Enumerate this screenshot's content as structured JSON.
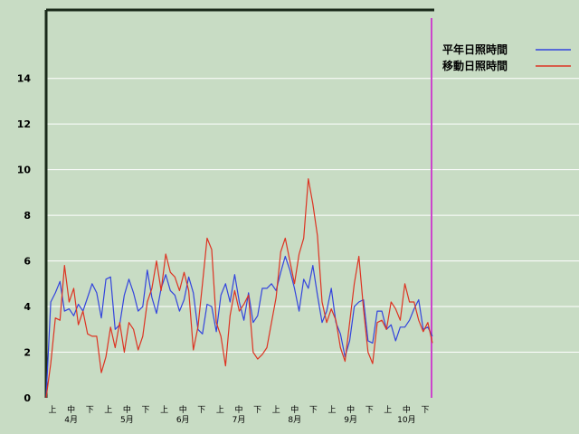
{
  "chart_data": {
    "type": "line",
    "title": "",
    "xlabel": "",
    "ylabel": "",
    "ylim": [
      0,
      17
    ],
    "y_ticks": [
      "0",
      "2",
      "4",
      "6",
      "8",
      "10",
      "12",
      "14"
    ],
    "x_period_labels": [
      "上",
      "中",
      "下",
      "上",
      "中",
      "下",
      "上",
      "中",
      "下",
      "上",
      "中",
      "下",
      "上",
      "中",
      "下",
      "上",
      "中",
      "下",
      "上",
      "中",
      "下"
    ],
    "x_month_labels": [
      "4月",
      "5月",
      "6月",
      "7月",
      "8月",
      "9月",
      "10月"
    ],
    "grid": true,
    "legend_position": "top-right",
    "series": [
      {
        "name": "平年日照時間",
        "color": "#3344dd",
        "values": [
          0.0,
          4.2,
          4.6,
          5.1,
          3.8,
          3.9,
          3.6,
          4.1,
          3.8,
          4.4,
          5.0,
          4.6,
          3.5,
          5.2,
          5.3,
          3.0,
          3.2,
          4.5,
          5.2,
          4.6,
          3.8,
          4.0,
          5.6,
          4.4,
          3.7,
          4.8,
          5.4,
          4.7,
          4.5,
          3.8,
          4.3,
          5.3,
          4.6,
          3.0,
          2.8,
          4.1,
          4.0,
          2.9,
          4.5,
          5.0,
          4.2,
          5.4,
          4.2,
          3.4,
          4.6,
          3.3,
          3.6,
          4.8,
          4.8,
          5.0,
          4.7,
          5.5,
          6.2,
          5.6,
          4.8,
          3.8,
          5.2,
          4.8,
          5.8,
          4.5,
          3.3,
          3.8,
          4.8,
          3.3,
          2.8,
          1.8,
          2.5,
          4.0,
          4.2,
          4.3,
          2.5,
          2.4,
          3.8,
          3.8,
          3.0,
          3.2,
          2.5,
          3.1,
          3.1,
          3.4,
          3.9,
          4.3,
          3.0,
          3.1,
          2.7
        ],
        "color_hex": "#3344dd"
      },
      {
        "name": "移動日照時間",
        "color": "#dd3322",
        "values": [
          0.0,
          1.5,
          3.5,
          3.4,
          5.8,
          4.2,
          4.8,
          3.2,
          3.8,
          2.8,
          2.7,
          2.7,
          1.1,
          1.8,
          3.1,
          2.2,
          3.3,
          2.0,
          3.3,
          3.0,
          2.1,
          2.7,
          4.2,
          4.8,
          6.0,
          4.7,
          6.3,
          5.5,
          5.3,
          4.7,
          5.5,
          4.7,
          2.1,
          3.1,
          5.0,
          7.0,
          6.5,
          3.3,
          2.7,
          1.4,
          3.6,
          4.7,
          3.8,
          4.1,
          4.5,
          2.0,
          1.7,
          1.9,
          2.2,
          3.3,
          4.4,
          6.4,
          7.0,
          6.0,
          5.0,
          6.3,
          7.0,
          9.6,
          8.5,
          7.1,
          4.2,
          3.3,
          3.9,
          3.4,
          2.2,
          1.6,
          3.3,
          5.0,
          6.2,
          3.9,
          2.0,
          1.5,
          3.3,
          3.4,
          3.0,
          4.2,
          3.9,
          3.4,
          5.0,
          4.2,
          4.2,
          3.4,
          2.9,
          3.3,
          2.4
        ],
        "color_hex": "#dd3322"
      }
    ],
    "series_colors": {
      "normal": "#3344dd",
      "moving": "#dd3322",
      "marker": "#cc44cc"
    }
  },
  "legend": {
    "normal_label": "平年日照時間",
    "moving_label": "移動日照時間"
  }
}
